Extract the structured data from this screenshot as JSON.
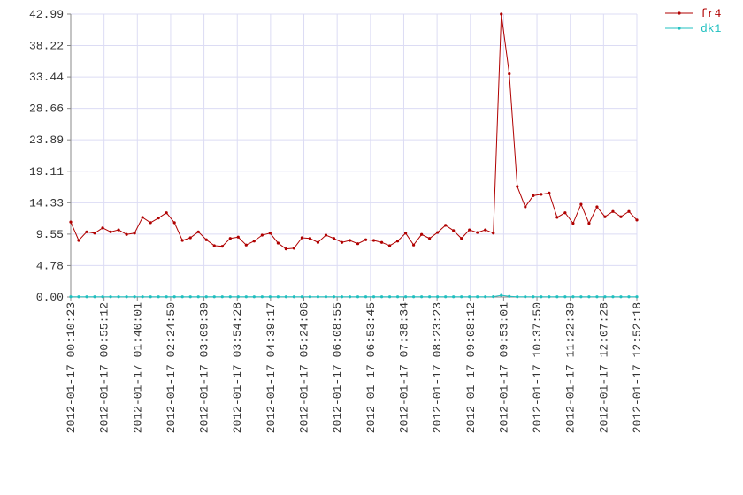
{
  "chart_data": {
    "type": "line",
    "x": [
      0,
      644,
      1288,
      1932,
      2575,
      3219,
      3863,
      4507,
      5151,
      5795,
      6439,
      7083,
      7726,
      8370,
      9014,
      9658,
      10302,
      10946,
      11590,
      12234,
      12877,
      13521,
      14165,
      14809,
      15453,
      16097,
      16741,
      17384,
      18028,
      18672,
      19316,
      19960,
      20604,
      21248,
      21892,
      22535,
      23179,
      23823,
      24467,
      25111,
      25755,
      26399,
      27043,
      27686,
      28330,
      28974,
      29618,
      30262,
      30906,
      31550,
      32194,
      32837,
      33481,
      34125,
      34769,
      35413,
      36057,
      36701,
      37345,
      37988,
      38632,
      39276,
      39920,
      40564,
      41208,
      41852,
      42496,
      43139,
      43783,
      44427,
      45071,
      45715
    ],
    "series": [
      {
        "name": "fr4",
        "color": "#b00000",
        "values": [
          11.4,
          8.6,
          9.9,
          9.7,
          10.5,
          9.9,
          10.2,
          9.5,
          9.7,
          12.1,
          11.3,
          12.0,
          12.8,
          11.3,
          8.6,
          9.0,
          9.9,
          8.7,
          7.8,
          7.7,
          8.9,
          9.1,
          7.9,
          8.5,
          9.4,
          9.7,
          8.2,
          7.3,
          7.4,
          9.0,
          8.9,
          8.3,
          9.4,
          8.9,
          8.3,
          8.6,
          8.1,
          8.7,
          8.6,
          8.3,
          7.8,
          8.5,
          9.7,
          7.9,
          9.5,
          8.9,
          9.8,
          10.9,
          10.1,
          8.9,
          10.2,
          9.8,
          10.2,
          9.7,
          42.99,
          33.9,
          16.8,
          13.7,
          15.4,
          15.6,
          15.8,
          12.1,
          12.8,
          11.2,
          14.1,
          11.2,
          13.7,
          12.2,
          13.0,
          12.2,
          13.0,
          11.7
        ]
      },
      {
        "name": "dk1",
        "color": "#20c0c0",
        "values": [
          0.03,
          0.03,
          0.03,
          0.03,
          0.03,
          0.03,
          0.03,
          0.03,
          0.03,
          0.03,
          0.03,
          0.03,
          0.03,
          0.03,
          0.03,
          0.03,
          0.03,
          0.03,
          0.03,
          0.03,
          0.03,
          0.03,
          0.03,
          0.03,
          0.03,
          0.03,
          0.03,
          0.03,
          0.03,
          0.03,
          0.03,
          0.03,
          0.03,
          0.03,
          0.03,
          0.03,
          0.03,
          0.03,
          0.03,
          0.03,
          0.03,
          0.03,
          0.03,
          0.03,
          0.03,
          0.03,
          0.03,
          0.03,
          0.03,
          0.03,
          0.03,
          0.03,
          0.03,
          0.05,
          0.25,
          0.1,
          0.03,
          0.03,
          0.03,
          0.03,
          0.03,
          0.03,
          0.03,
          0.03,
          0.03,
          0.03,
          0.03,
          0.03,
          0.03,
          0.03,
          0.03,
          0.03
        ]
      }
    ],
    "xlim": [
      0,
      45715
    ],
    "xticks": [
      {
        "value": 0,
        "label": "2012-01-17 00:10:23"
      },
      {
        "value": 2689,
        "label": "2012-01-17 00:55:12"
      },
      {
        "value": 5378,
        "label": "2012-01-17 01:40:01"
      },
      {
        "value": 8067,
        "label": "2012-01-17 02:24:50"
      },
      {
        "value": 10756,
        "label": "2012-01-17 03:09:39"
      },
      {
        "value": 13445,
        "label": "2012-01-17 03:54:28"
      },
      {
        "value": 16134,
        "label": "2012-01-17 04:39:17"
      },
      {
        "value": 18823,
        "label": "2012-01-17 05:24:06"
      },
      {
        "value": 21512,
        "label": "2012-01-17 06:08:55"
      },
      {
        "value": 24202,
        "label": "2012-01-17 06:53:45"
      },
      {
        "value": 26891,
        "label": "2012-01-17 07:38:34"
      },
      {
        "value": 29580,
        "label": "2012-01-17 08:23:23"
      },
      {
        "value": 32269,
        "label": "2012-01-17 09:08:12"
      },
      {
        "value": 34958,
        "label": "2012-01-17 09:53:01"
      },
      {
        "value": 37647,
        "label": "2012-01-17 10:37:50"
      },
      {
        "value": 40336,
        "label": "2012-01-17 11:22:39"
      },
      {
        "value": 43025,
        "label": "2012-01-17 12:07:28"
      },
      {
        "value": 45715,
        "label": "2012-01-17 12:52:18"
      }
    ],
    "ylim": [
      0,
      42.99
    ],
    "yticks": [
      {
        "value": 0,
        "label": "0.00"
      },
      4.78,
      9.55,
      14.33,
      19.11,
      23.89,
      28.66,
      33.44,
      38.22,
      42.99
    ],
    "grid": true,
    "legend": "top-right"
  }
}
